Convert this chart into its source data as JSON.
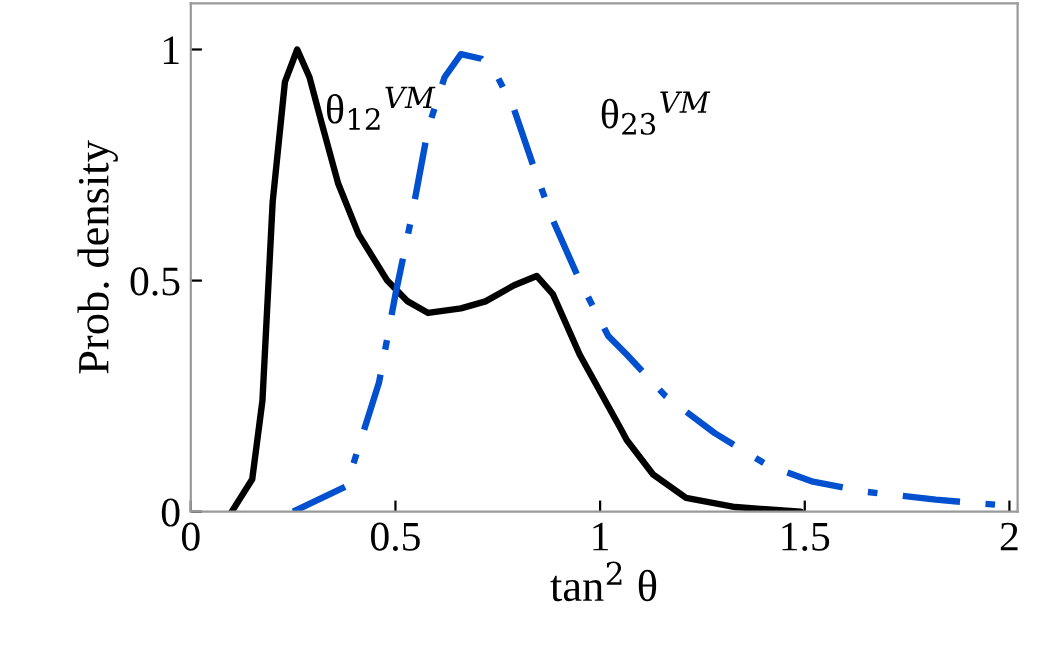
{
  "chart_data": {
    "type": "line",
    "xlabel": "tan$^{2}$ θ",
    "ylabel": "Prob. density",
    "xlim": [
      0,
      2.02
    ],
    "ylim": [
      0,
      1.1
    ],
    "xticks": [
      0,
      0.5,
      1,
      1.5,
      2
    ],
    "yticks": [
      0,
      0.5,
      1
    ],
    "grid": false,
    "legend": false,
    "marker": "none",
    "series": [
      {
        "name": "θ$_{12}$$^{VM}$",
        "color": "#000000",
        "line_style": "solid",
        "x": [
          0.1,
          0.15,
          0.175,
          0.2,
          0.23,
          0.26,
          0.29,
          0.32,
          0.36,
          0.41,
          0.48,
          0.53,
          0.58,
          0.66,
          0.72,
          0.79,
          0.845,
          0.885,
          0.95,
          1.05,
          1.065,
          1.13,
          1.21,
          1.33,
          1.49
        ],
        "values": [
          0.0,
          0.07,
          0.24,
          0.67,
          0.93,
          1.0,
          0.94,
          0.84,
          0.71,
          0.6,
          0.5,
          0.455,
          0.43,
          0.44,
          0.455,
          0.49,
          0.51,
          0.47,
          0.34,
          0.18,
          0.155,
          0.08,
          0.03,
          0.01,
          0.0
        ]
      },
      {
        "name": "θ$_{23}$$^{VM}$",
        "color": "#0050d0",
        "line_style": "dashdot",
        "x": [
          0.25,
          0.38,
          0.46,
          0.5,
          0.54,
          0.58,
          0.62,
          0.66,
          0.71,
          0.75,
          0.79,
          0.84,
          0.885,
          0.95,
          1.02,
          1.065,
          1.16,
          1.28,
          1.41,
          1.52,
          1.65,
          1.82,
          1.98
        ],
        "values": [
          0.0,
          0.055,
          0.28,
          0.47,
          0.64,
          0.83,
          0.94,
          0.99,
          0.98,
          0.94,
          0.87,
          0.74,
          0.63,
          0.5,
          0.38,
          0.34,
          0.25,
          0.17,
          0.1,
          0.065,
          0.043,
          0.026,
          0.014
        ]
      }
    ]
  }
}
